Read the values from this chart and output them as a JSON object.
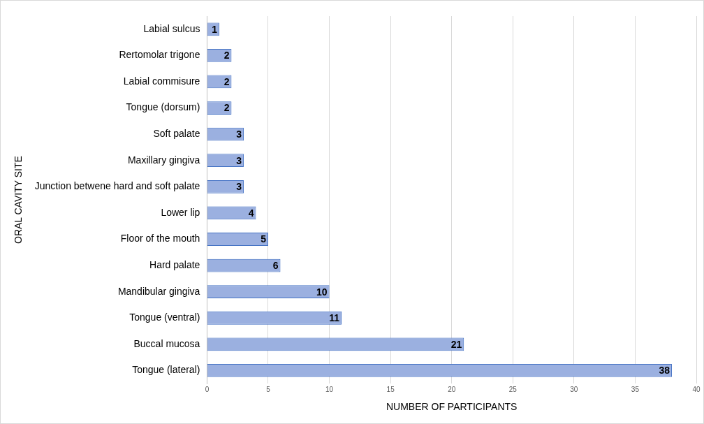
{
  "chart_data": {
    "type": "bar",
    "orientation": "horizontal",
    "xlabel": "NUMBER OF PARTICIPANTS",
    "ylabel": "ORAL CAVITY SITE",
    "categories": [
      "Labial sulcus",
      "Rertomolar trigone",
      "Labial commisure",
      "Tongue (dorsum)",
      "Soft palate",
      "Maxillary gingiva",
      "Junction betwene hard and soft palate",
      "Lower lip",
      "Floor of the mouth",
      "Hard palate",
      "Mandibular gingiva",
      "Tongue (ventral)",
      "Buccal mucosa",
      "Tongue (lateral)"
    ],
    "values": [
      1,
      2,
      2,
      2,
      3,
      3,
      3,
      4,
      5,
      6,
      10,
      11,
      21,
      38
    ],
    "color": "#9bb0e0",
    "xlim": [
      0,
      40
    ],
    "xticks": [
      0,
      5,
      10,
      15,
      20,
      25,
      30,
      35,
      40
    ],
    "grid": "x",
    "data_labels": true
  }
}
